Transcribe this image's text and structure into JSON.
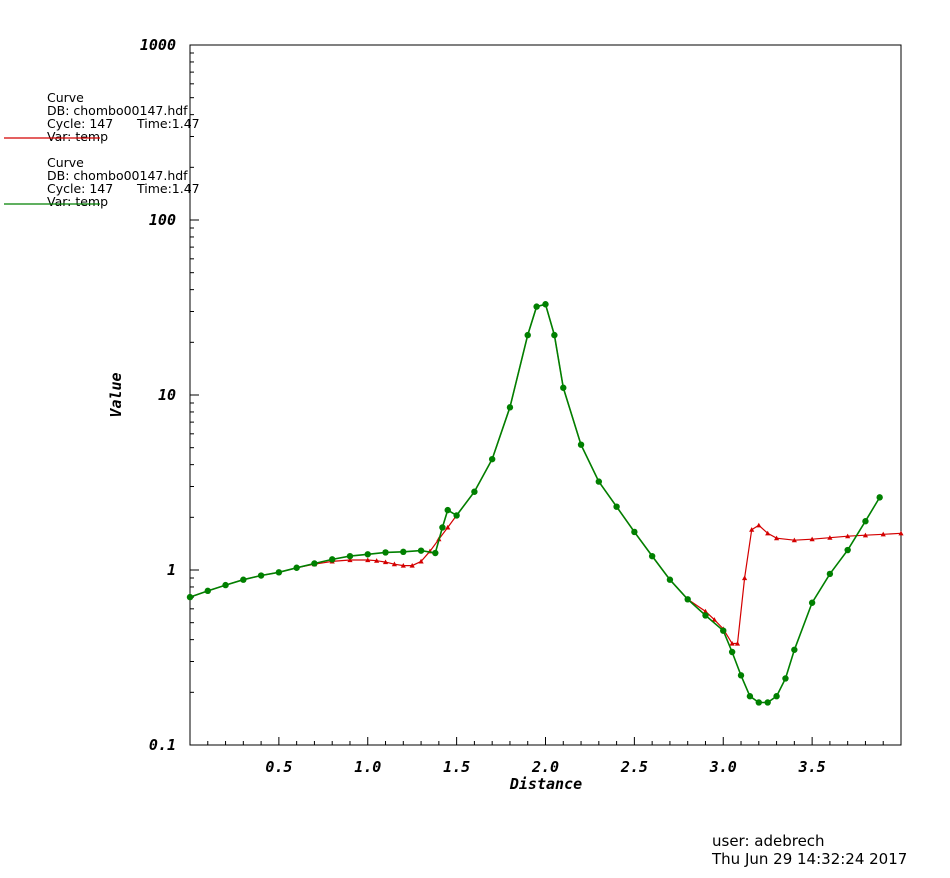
{
  "legend": [
    {
      "title": "Curve",
      "db": "DB: chombo00147.hdf",
      "cycle": "Cycle: 147",
      "time": "Time:1.47",
      "var": "Var: temp",
      "color": "#d40000"
    },
    {
      "title": "Curve",
      "db": "DB: chombo00147.hdf",
      "cycle": "Cycle: 147",
      "time": "Time:1.47",
      "var": "Var: temp",
      "color": "#008000"
    }
  ],
  "footer": {
    "user": "user: adebrech",
    "timestamp": "Thu Jun 29 14:32:24 2017"
  },
  "chart_data": {
    "type": "line",
    "xlabel": "Distance",
    "ylabel": "Value",
    "xlim": [
      0,
      4.0
    ],
    "ylim": [
      0.1,
      1000
    ],
    "yscale": "log",
    "x_ticks": [
      "0.5",
      "1.0",
      "1.5",
      "2.0",
      "2.5",
      "3.0",
      "3.5"
    ],
    "y_ticks": [
      "0.1",
      "1",
      "10",
      "100",
      "1000"
    ],
    "grid": false,
    "legend_position": "top-left",
    "series": [
      {
        "name": "",
        "color": "#d40000",
        "marker": "triangle",
        "x": [
          0.0,
          0.1,
          0.2,
          0.3,
          0.4,
          0.5,
          0.6,
          0.7,
          0.8,
          0.9,
          1.0,
          1.05,
          1.1,
          1.15,
          1.2,
          1.25,
          1.3,
          1.35,
          1.4,
          1.45,
          1.5,
          1.6,
          1.7,
          1.8,
          1.9,
          1.95,
          2.0,
          2.05,
          2.1,
          2.2,
          2.3,
          2.4,
          2.5,
          2.6,
          2.7,
          2.8,
          2.9,
          2.95,
          3.0,
          3.05,
          3.08,
          3.12,
          3.16,
          3.2,
          3.25,
          3.3,
          3.4,
          3.5,
          3.6,
          3.7,
          3.8,
          3.9,
          4.0
        ],
        "y": [
          0.7,
          0.76,
          0.82,
          0.88,
          0.93,
          0.97,
          1.03,
          1.08,
          1.12,
          1.14,
          1.14,
          1.13,
          1.11,
          1.08,
          1.06,
          1.06,
          1.12,
          1.28,
          1.5,
          1.75,
          2.05,
          2.8,
          4.3,
          8.5,
          22.0,
          32.0,
          33.0,
          22.0,
          11.0,
          5.2,
          3.2,
          2.3,
          1.65,
          1.2,
          0.88,
          0.68,
          0.58,
          0.52,
          0.46,
          0.38,
          0.38,
          0.9,
          1.7,
          1.8,
          1.62,
          1.52,
          1.48,
          1.5,
          1.53,
          1.56,
          1.58,
          1.6,
          1.62
        ]
      },
      {
        "name": "",
        "color": "#008000",
        "marker": "circle",
        "x": [
          0.0,
          0.1,
          0.2,
          0.3,
          0.4,
          0.5,
          0.6,
          0.7,
          0.8,
          0.9,
          1.0,
          1.1,
          1.2,
          1.3,
          1.38,
          1.42,
          1.45,
          1.5,
          1.6,
          1.7,
          1.8,
          1.9,
          1.95,
          2.0,
          2.05,
          2.1,
          2.2,
          2.3,
          2.4,
          2.5,
          2.6,
          2.7,
          2.8,
          2.9,
          3.0,
          3.05,
          3.1,
          3.15,
          3.2,
          3.25,
          3.3,
          3.35,
          3.4,
          3.5,
          3.6,
          3.7,
          3.8,
          3.88
        ],
        "y": [
          0.7,
          0.76,
          0.82,
          0.88,
          0.93,
          0.97,
          1.03,
          1.09,
          1.15,
          1.2,
          1.23,
          1.26,
          1.27,
          1.29,
          1.25,
          1.75,
          2.2,
          2.05,
          2.8,
          4.3,
          8.5,
          22.0,
          32.0,
          33.0,
          22.0,
          11.0,
          5.2,
          3.2,
          2.3,
          1.65,
          1.2,
          0.88,
          0.68,
          0.55,
          0.45,
          0.34,
          0.25,
          0.19,
          0.175,
          0.175,
          0.19,
          0.24,
          0.35,
          0.65,
          0.95,
          1.3,
          1.9,
          2.6
        ]
      }
    ]
  }
}
